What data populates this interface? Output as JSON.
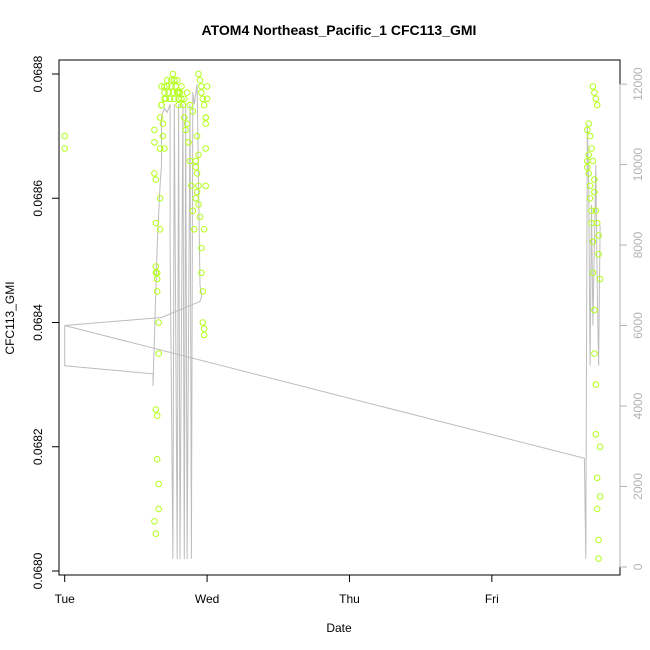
{
  "chart_data": {
    "type": "scatter",
    "title": "ATOM4 Northeast_Pacific_1 CFC113_GMI",
    "xlabel": "Date",
    "ylabel": "CFC113_GMI",
    "x_ticks": [
      "Tue",
      "Wed",
      "Thu",
      "Fri"
    ],
    "x_tick_days": [
      0,
      1,
      2,
      3
    ],
    "xlim_days": [
      -0.04,
      3.9
    ],
    "ylim": [
      0.068,
      0.0688
    ],
    "y_ticks": [
      0.068,
      0.0682,
      0.0684,
      0.0686,
      0.0688
    ],
    "y_tick_labels": [
      "0.0680",
      "0.0682",
      "0.0684",
      "0.0686",
      "0.0688"
    ],
    "y2_ticks": [
      0,
      2000,
      4000,
      6000,
      8000,
      10000,
      12000
    ],
    "y2_tick_labels": [
      "0",
      "2000",
      "4000",
      "6000",
      "8000",
      "10000",
      "12000"
    ],
    "y2lim": [
      -200,
      12600
    ],
    "grid": false,
    "colors": {
      "points": "#b3ff1a",
      "altitude_line": "#bdbdbd",
      "right_axis": "#b3b3b3"
    },
    "series": [
      {
        "role": "CFC113_GMI",
        "x_days": [
          0.0,
          0.0,
          0.63,
          0.63,
          0.63,
          0.64,
          0.64,
          0.64,
          0.64,
          0.65,
          0.65,
          0.65,
          0.66,
          0.66,
          0.67,
          0.67,
          0.67,
          0.67,
          0.68,
          0.68,
          0.68,
          0.69,
          0.69,
          0.7,
          0.7,
          0.7,
          0.7,
          0.71,
          0.72,
          0.72,
          0.73,
          0.74,
          0.75,
          0.76,
          0.77,
          0.78,
          0.79,
          0.8,
          0.8,
          0.81,
          0.82,
          0.83,
          0.84,
          0.85,
          0.86,
          0.87,
          0.88,
          0.89,
          0.9,
          0.91,
          0.92,
          0.92,
          0.93,
          0.94,
          0.94,
          0.95,
          0.96,
          0.96,
          0.97,
          0.97,
          0.98,
          0.98,
          0.98,
          0.99,
          0.99,
          0.99,
          1.0,
          1.0,
          0.64,
          0.65,
          0.65,
          0.66,
          0.66,
          0.63,
          0.64,
          0.94,
          0.95,
          0.96,
          0.96,
          0.97,
          0.98,
          0.99,
          0.99,
          0.92,
          0.93,
          0.93,
          0.94,
          0.75,
          0.76,
          0.77,
          0.78,
          0.79,
          0.8,
          0.82,
          0.84,
          0.86,
          0.88,
          0.9,
          3.67,
          3.67,
          3.68,
          3.68,
          3.69,
          3.69,
          3.7,
          3.7,
          3.71,
          3.71,
          3.72,
          3.72,
          3.73,
          3.73,
          3.74,
          3.74,
          3.75,
          3.75,
          3.76,
          3.76,
          3.67,
          3.68,
          3.69,
          3.7,
          3.71,
          3.72,
          3.72,
          3.73,
          3.74,
          3.75,
          3.75,
          3.76,
          3.71,
          3.72,
          3.73,
          3.74
        ],
        "y": [
          0.0687,
          0.06868,
          0.06871,
          0.06869,
          0.06864,
          0.06863,
          0.06856,
          0.06849,
          0.06848,
          0.06848,
          0.06847,
          0.06845,
          0.0684,
          0.06835,
          0.06855,
          0.0686,
          0.06868,
          0.06873,
          0.06875,
          0.06878,
          0.06875,
          0.06872,
          0.0687,
          0.06868,
          0.06876,
          0.06878,
          0.06877,
          0.06876,
          0.06879,
          0.06878,
          0.06877,
          0.06876,
          0.06878,
          0.06877,
          0.06876,
          0.06878,
          0.06877,
          0.06876,
          0.06875,
          0.06877,
          0.06876,
          0.06875,
          0.06873,
          0.06871,
          0.06872,
          0.06869,
          0.06866,
          0.06862,
          0.06858,
          0.06855,
          0.0686,
          0.06865,
          0.0687,
          0.06867,
          0.06862,
          0.06857,
          0.06852,
          0.06848,
          0.06845,
          0.0684,
          0.06839,
          0.06838,
          0.06855,
          0.06862,
          0.06868,
          0.06873,
          0.06876,
          0.06878,
          0.06826,
          0.06825,
          0.06818,
          0.06814,
          0.0681,
          0.06808,
          0.06806,
          0.0688,
          0.06879,
          0.06878,
          0.06877,
          0.06876,
          0.06875,
          0.06873,
          0.06872,
          0.06866,
          0.06864,
          0.06861,
          0.06859,
          0.06879,
          0.0688,
          0.06879,
          0.06878,
          0.06879,
          0.06877,
          0.06878,
          0.06876,
          0.06877,
          0.06875,
          0.06874,
          0.06865,
          0.06866,
          0.06867,
          0.06864,
          0.06862,
          0.0686,
          0.06858,
          0.06856,
          0.06853,
          0.06848,
          0.06842,
          0.06835,
          0.0683,
          0.06822,
          0.06815,
          0.0681,
          0.06805,
          0.06802,
          0.06812,
          0.0682,
          0.06871,
          0.06872,
          0.0687,
          0.06868,
          0.06866,
          0.06863,
          0.06861,
          0.06858,
          0.06856,
          0.06854,
          0.06851,
          0.06847,
          0.06878,
          0.06877,
          0.06876,
          0.06875
        ]
      },
      {
        "role": "altitude",
        "x_days": [
          0.0,
          0.0,
          0.62,
          0.62,
          0.65,
          0.67,
          0.68,
          0.68,
          0.7,
          0.72,
          0.74,
          0.74,
          0.76,
          0.77,
          0.79,
          0.8,
          0.81,
          0.83,
          0.84,
          0.85,
          0.86,
          0.88,
          0.89,
          0.9,
          0.91,
          0.93,
          0.93,
          0.95,
          0.96,
          0.96,
          0.95,
          0.68,
          0.0,
          3.65,
          3.66,
          3.67,
          3.68,
          3.69,
          3.7,
          3.71,
          3.72,
          3.73,
          3.74,
          3.75,
          3.76
        ],
        "y": [
          6000,
          5000,
          4800,
          4500,
          8000,
          9500,
          10000,
          11200,
          11400,
          11300,
          11500,
          8000,
          200,
          11500,
          200,
          11500,
          200,
          11500,
          200,
          11500,
          200,
          11500,
          200,
          11800,
          11500,
          12000,
          12000,
          7000,
          6800,
          6700,
          6600,
          6200,
          6000,
          2700,
          200,
          11000,
          9500,
          5000,
          9000,
          6000,
          8000,
          10000,
          7000,
          5000,
          8500
        ]
      }
    ]
  }
}
